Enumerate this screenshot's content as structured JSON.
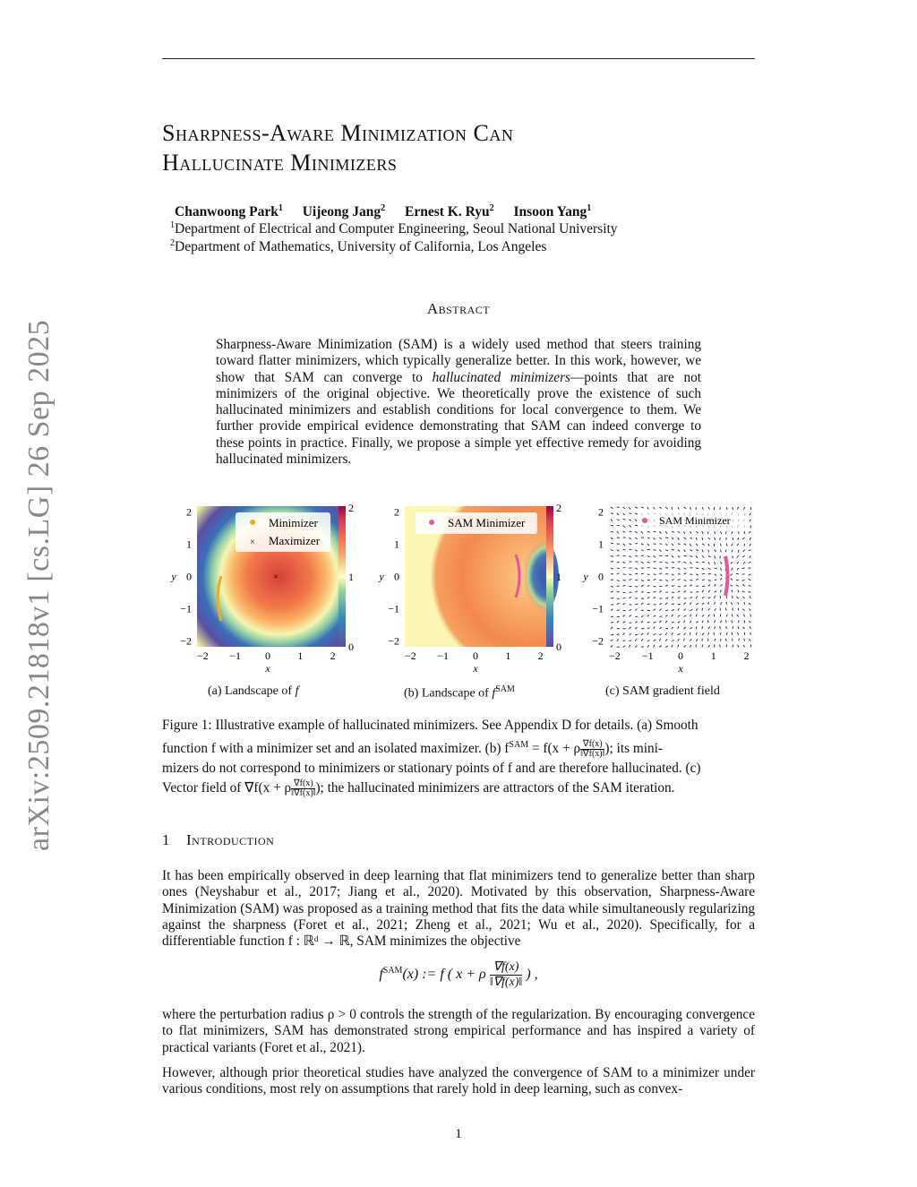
{
  "arxiv_stamp": "arXiv:2509.21818v1  [cs.LG]  26 Sep 2025",
  "title_line1": "Sharpness-Aware Minimization Can",
  "title_line2": "Hallucinate Minimizers",
  "authors": [
    {
      "name": "Chanwoong Park",
      "aff": "1"
    },
    {
      "name": "Uijeong Jang",
      "aff": "2"
    },
    {
      "name": "Ernest K. Ryu",
      "aff": "2"
    },
    {
      "name": "Insoon Yang",
      "aff": "1"
    }
  ],
  "affiliations": [
    {
      "num": "1",
      "text": "Department of Electrical and Computer Engineering, Seoul National University"
    },
    {
      "num": "2",
      "text": "Department of Mathematics, University of California, Los Angeles"
    }
  ],
  "abstract_heading": "Abstract",
  "abstract_part1": "Sharpness-Aware Minimization (SAM) is a widely used method that steers training toward flatter minimizers, which typically generalize better. In this work, however, we show that SAM can converge to ",
  "abstract_em": "hallucinated minimizers",
  "abstract_part2": "—points that are not minimizers of the original objective. We theoretically prove the existence of such hallucinated minimizers and establish conditions for local convergence to them. We further provide empirical evidence demonstrating that SAM can indeed converge to these points in practice. Finally, we propose a simple yet effective remedy for avoiding hallucinated minimizers.",
  "figure": {
    "panels": [
      {
        "caption": "(a) Landscape of f",
        "type": "heatmap",
        "xlabel": "x",
        "ylabel": "y",
        "xticks": [
          "−2",
          "−1",
          "0",
          "1",
          "2"
        ],
        "yticks": [
          "2",
          "1",
          "0",
          "−1",
          "−2"
        ],
        "colorbar_ticks": [
          "2",
          "1",
          "0"
        ],
        "legend": [
          "Minimizer",
          "Maximizer"
        ],
        "colormap": "Spectral_r"
      },
      {
        "caption": "(b) Landscape of fSAM",
        "type": "heatmap",
        "xlabel": "x",
        "ylabel": "y",
        "xticks": [
          "−2",
          "−1",
          "0",
          "1",
          "2"
        ],
        "yticks": [
          "2",
          "1",
          "0",
          "−1",
          "−2"
        ],
        "colorbar_ticks": [
          "2",
          "1",
          "0"
        ],
        "legend": [
          "SAM Minimizer"
        ],
        "colormap": "Spectral_r"
      },
      {
        "caption": "(c) SAM gradient field",
        "type": "quiver",
        "xlabel": "x",
        "ylabel": "y",
        "xticks": [
          "−2",
          "−1",
          "0",
          "1",
          "2"
        ],
        "yticks": [
          "2",
          "1",
          "0",
          "−1",
          "−2"
        ],
        "legend": [
          "SAM Minimizer"
        ],
        "arrow_color": "#1a1a4e"
      }
    ],
    "colors": {
      "minimizer": "#f5a623",
      "sam_minimizer": "#e8559a",
      "maximizer": "#333333"
    }
  },
  "figure_caption": {
    "line1": "Figure 1: Illustrative example of hallucinated minimizers.  See Appendix D for details.  (a) Smooth",
    "line2a": "function f with a minimizer set and an isolated maximizer. (b) f",
    "line2sup": "SAM",
    "line2b": " = f(x + ρ",
    "frac_num": "∇f(x)",
    "frac_den": "‖∇f(x)‖",
    "line2c": "); its mini-",
    "line3": "mizers do not correspond to minimizers or stationary points of f and are therefore hallucinated. (c)",
    "line4a": "Vector field of ∇f(x + ρ",
    "line4b": "); the hallucinated minimizers are attractors of the SAM iteration."
  },
  "section": {
    "number": "1",
    "title": "Introduction"
  },
  "intro_p1": "It has been empirically observed in deep learning that flat minimizers tend to generalize better than sharp ones (Neyshabur et al., 2017; Jiang et al., 2020). Motivated by this observation, Sharpness-Aware Minimization (SAM) was proposed as a training method that fits the data while simultaneously regularizing against the sharpness (Foret et al., 2021; Zheng et al., 2021; Wu et al., 2020). Specifically, for a differentiable function f : ℝᵈ → ℝ, SAM minimizes the objective",
  "equation": {
    "lhs": "f",
    "sup": "SAM",
    "rest": "(x) := f ( x + ρ",
    "num": "∇f(x)",
    "den": "‖∇f(x)‖",
    "end": ") ,"
  },
  "intro_p2": "where the perturbation radius ρ > 0 controls the strength of the regularization. By encouraging convergence to flat minimizers, SAM has demonstrated strong empirical performance and has inspired a variety of practical variants (Foret et al., 2021).",
  "intro_p3": "However, although prior theoretical studies have analyzed the convergence of SAM to a minimizer under various conditions, most rely on assumptions that rarely hold in deep learning, such as convex-",
  "page_number": "1"
}
